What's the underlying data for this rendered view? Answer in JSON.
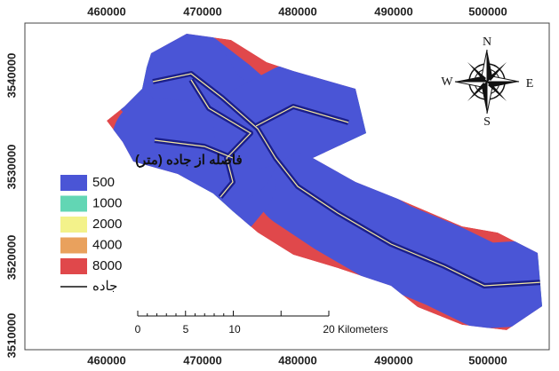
{
  "map": {
    "x_labels": [
      "460000",
      "470000",
      "480000",
      "490000",
      "500000"
    ],
    "y_labels": [
      "3540000",
      "3530000",
      "3520000",
      "3510000"
    ],
    "legend": {
      "title": "فاصله از جاده (متر)",
      "items": [
        {
          "label": "500",
          "color": "#4a55d6"
        },
        {
          "label": "1000",
          "color": "#62d6b4"
        },
        {
          "label": "2000",
          "color": "#f3f28a"
        },
        {
          "label": "4000",
          "color": "#e9a15d"
        },
        {
          "label": "8000",
          "color": "#e0484b"
        }
      ],
      "road_label": "جاده"
    },
    "compass": {
      "north": "N",
      "south": "S",
      "east": "E",
      "west": "W"
    },
    "scale_bar": {
      "labels": [
        "0",
        "5",
        "10",
        "20"
      ],
      "unit": "Kilometers"
    }
  }
}
